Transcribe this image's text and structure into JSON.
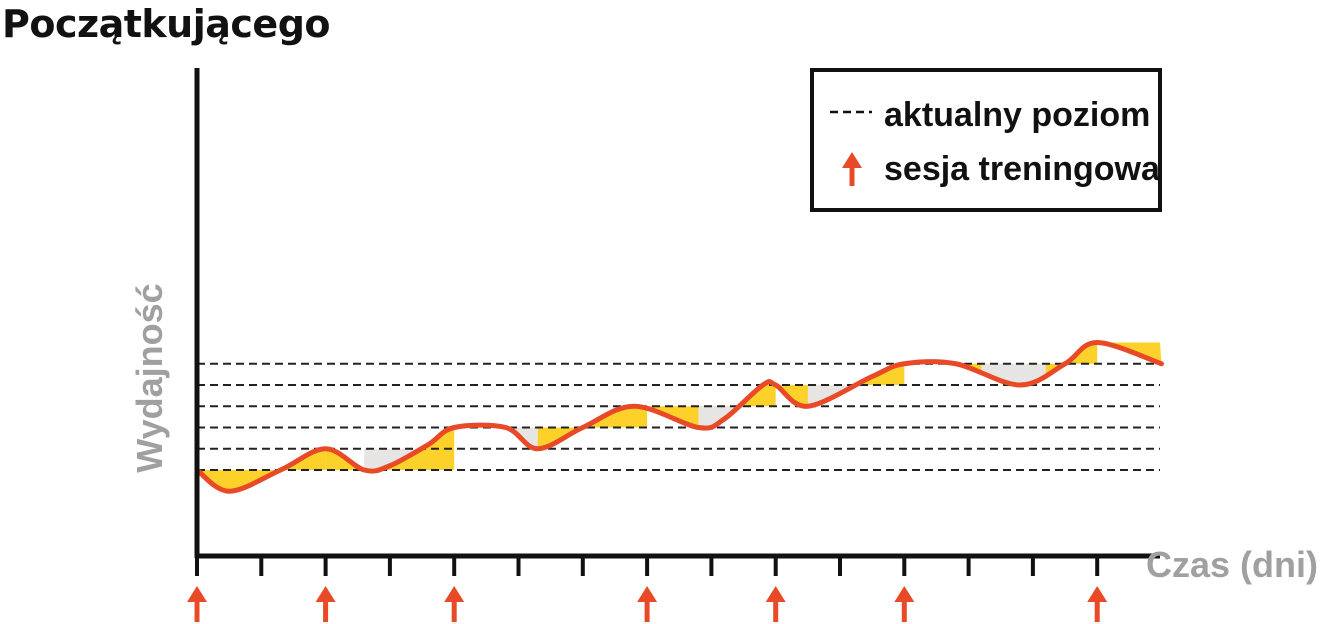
{
  "title": "Początkującego",
  "chart_data": {
    "type": "line",
    "xlabel": "Czas (dni)",
    "ylabel": "Wydajność",
    "legend": {
      "placement": "top-right",
      "items": [
        {
          "symbol": "dashed-line",
          "label": "aktualny poziom"
        },
        {
          "symbol": "arrow-up-icon",
          "label": "sesja treningowa"
        }
      ]
    },
    "xlim": [
      0,
      15
    ],
    "ylim": [
      0,
      10
    ],
    "x_ticks": [
      0,
      1,
      2,
      3,
      4,
      5,
      6,
      7,
      8,
      9,
      10,
      11,
      12,
      13,
      14
    ],
    "training_sessions": [
      0,
      2,
      4,
      7,
      9,
      11,
      14
    ],
    "levels": [
      1.0,
      1.25,
      1.5,
      1.75,
      2.0,
      2.25
    ],
    "series": [
      {
        "x": [
          0,
          0.5,
          1.3,
          2.0,
          2.6,
          3.0,
          3.6,
          4.0,
          4.8,
          5.3,
          6.0,
          6.8,
          7.8,
          8.2,
          8.8,
          9.0,
          9.5,
          10.5,
          11.0,
          11.8,
          12.8,
          13.5,
          14.0,
          15.0
        ],
        "y": [
          1.0,
          0.75,
          1.0,
          1.25,
          1.0,
          1.05,
          1.3,
          1.5,
          1.5,
          1.25,
          1.5,
          1.75,
          1.5,
          1.6,
          2.0,
          2.0,
          1.75,
          2.1,
          2.25,
          2.25,
          2.0,
          2.25,
          2.5,
          2.25
        ]
      }
    ],
    "colors": {
      "curve": "#e84a27",
      "supercompensation": "#fcd12a",
      "recovery": "#e7e4e4",
      "axis": "#111111",
      "arrow": "#e84a27",
      "axis_label": "#a0a0a0"
    }
  }
}
